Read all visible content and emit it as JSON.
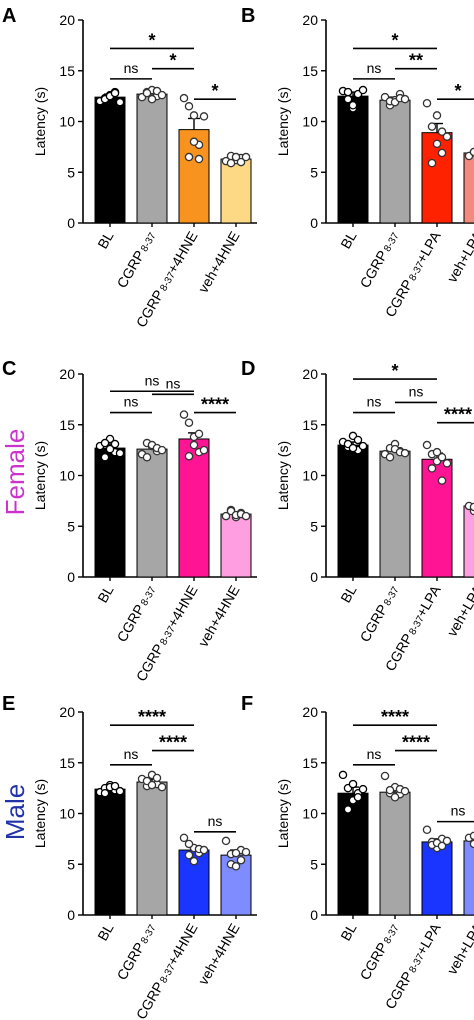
{
  "row_labels": [
    {
      "text": "",
      "color": "#000000"
    },
    {
      "text": "Female",
      "color": "#cc33cc"
    },
    {
      "text": "Male",
      "color": "#2233aa"
    }
  ],
  "chart_data": [
    {
      "panel": "A",
      "type": "bar",
      "ylabel": "Latency (s)",
      "ylim": [
        0,
        20
      ],
      "yticks": [
        0,
        5,
        10,
        15,
        20
      ],
      "categories": [
        {
          "main": "BL",
          "sub": "",
          "tail": ""
        },
        {
          "main": "CGRP",
          "sub": "8-37",
          "tail": ""
        },
        {
          "main": "CGRP",
          "sub": "8-37",
          "tail": "+4HNE"
        },
        {
          "main": "veh+4HNE",
          "sub": "",
          "tail": ""
        }
      ],
      "colors": [
        "#000000",
        "#a6a6a6",
        "#f7931e",
        "#fdd885"
      ],
      "values": [
        12.4,
        12.7,
        9.2,
        6.3
      ],
      "errors": [
        0.3,
        0.3,
        1.1,
        0.2
      ],
      "points": [
        [
          12.0,
          12.3,
          12.6,
          12.9,
          12.2,
          12.5,
          12.8,
          11.9
        ],
        [
          12.4,
          12.9,
          13.1,
          12.5,
          12.8,
          12.2,
          13.0,
          12.6
        ],
        [
          12.3,
          11.5,
          10.6,
          7.7,
          6.5,
          8.0,
          6.3,
          10.5
        ],
        [
          6.1,
          6.6,
          6.2,
          6.4,
          5.9,
          6.5,
          6.0,
          6.5
        ]
      ],
      "significance": [
        {
          "from": 0,
          "to": 2,
          "label": "*",
          "y": 17.2
        },
        {
          "from": 0,
          "to": 1,
          "label": "ns",
          "y": 14.2
        },
        {
          "from": 1,
          "to": 2,
          "label": "*",
          "y": 15.2
        },
        {
          "from": 2,
          "to": 3,
          "label": "*",
          "y": 12.2
        }
      ]
    },
    {
      "panel": "B",
      "type": "bar",
      "ylabel": "Latency (s)",
      "ylim": [
        0,
        20
      ],
      "yticks": [
        0,
        5,
        10,
        15,
        20
      ],
      "categories": [
        {
          "main": "BL",
          "sub": "",
          "tail": ""
        },
        {
          "main": "CGRP",
          "sub": "8-37",
          "tail": ""
        },
        {
          "main": "CGRP",
          "sub": "8-37",
          "tail": "+LPA"
        },
        {
          "main": "veh+LPA",
          "sub": "",
          "tail": ""
        }
      ],
      "colors": [
        "#000000",
        "#a6a6a6",
        "#ff2200",
        "#f48a7e"
      ],
      "values": [
        12.5,
        12.1,
        8.9,
        6.9
      ],
      "errors": [
        0.4,
        0.3,
        0.9,
        0.1
      ],
      "points": [
        [
          13.0,
          12.2,
          11.3,
          12.6,
          12.9,
          11.6,
          12.7,
          13.1
        ],
        [
          12.4,
          11.6,
          12.1,
          12.7,
          12.0,
          11.9,
          12.3,
          12.2
        ],
        [
          11.8,
          9.5,
          7.8,
          6.9,
          5.9,
          10.6,
          9.0,
          8.5
        ],
        [
          6.6,
          7.0,
          6.8,
          7.1,
          7.0,
          6.7,
          6.9,
          7.2
        ]
      ],
      "significance": [
        {
          "from": 0,
          "to": 2,
          "label": "*",
          "y": 17.2
        },
        {
          "from": 0,
          "to": 1,
          "label": "ns",
          "y": 14.2
        },
        {
          "from": 1,
          "to": 2,
          "label": "**",
          "y": 15.2
        },
        {
          "from": 2,
          "to": 3,
          "label": "*",
          "y": 12.2
        }
      ]
    },
    {
      "panel": "C",
      "type": "bar",
      "ylabel": "Latency (s)",
      "ylim": [
        0,
        20
      ],
      "yticks": [
        0,
        5,
        10,
        15,
        20
      ],
      "categories": [
        {
          "main": "BL",
          "sub": "",
          "tail": ""
        },
        {
          "main": "CGRP",
          "sub": "8-37",
          "tail": ""
        },
        {
          "main": "CGRP",
          "sub": "8-37",
          "tail": "+4HNE"
        },
        {
          "main": "veh+4HNE",
          "sub": "",
          "tail": ""
        }
      ],
      "colors": [
        "#000000",
        "#a6a6a6",
        "#ff1493",
        "#ff9ee0"
      ],
      "values": [
        12.7,
        12.6,
        13.6,
        6.2
      ],
      "errors": [
        0.4,
        0.3,
        0.6,
        0.2
      ],
      "points": [
        [
          12.9,
          11.8,
          13.6,
          12.3,
          13.2,
          12.6,
          13.1,
          12.2
        ],
        [
          12.1,
          13.2,
          12.9,
          12.4,
          11.8,
          13.0,
          12.7,
          12.5
        ],
        [
          16.0,
          15.2,
          13.8,
          12.3,
          11.9,
          13.0,
          14.1,
          12.5
        ],
        [
          6.0,
          6.6,
          5.9,
          6.3,
          6.5,
          6.1,
          6.2,
          6.0
        ]
      ],
      "significance": [
        {
          "from": 0,
          "to": 2,
          "label": "ns",
          "y": 18.3
        },
        {
          "from": 0,
          "to": 1,
          "label": "ns",
          "y": 16.2
        },
        {
          "from": 1,
          "to": 2,
          "label": "ns",
          "y": 18.0
        },
        {
          "from": 2,
          "to": 3,
          "label": "****",
          "y": 16.2
        }
      ]
    },
    {
      "panel": "D",
      "type": "bar",
      "ylabel": "Latency (s)",
      "ylim": [
        0,
        20
      ],
      "yticks": [
        0,
        5,
        10,
        15,
        20
      ],
      "categories": [
        {
          "main": "BL",
          "sub": "",
          "tail": ""
        },
        {
          "main": "CGRP",
          "sub": "8-37",
          "tail": ""
        },
        {
          "main": "CGRP",
          "sub": "8-37",
          "tail": "+LPA"
        },
        {
          "main": "veh+LPA",
          "sub": "",
          "tail": ""
        }
      ],
      "colors": [
        "#000000",
        "#a6a6a6",
        "#ff1493",
        "#ff9ee0"
      ],
      "values": [
        13.0,
        12.4,
        11.6,
        7.0
      ],
      "errors": [
        0.3,
        0.3,
        0.6,
        0.2
      ],
      "points": [
        [
          13.3,
          12.8,
          13.9,
          12.5,
          13.1,
          12.7,
          13.5,
          12.9
        ],
        [
          12.1,
          12.7,
          13.1,
          12.4,
          11.8,
          12.6,
          12.3,
          12.2
        ],
        [
          13.0,
          12.1,
          11.4,
          9.5,
          10.7,
          12.3,
          11.8,
          11.2
        ],
        [
          7.0,
          6.5,
          7.6,
          6.8,
          6.9,
          7.3,
          6.7,
          7.1
        ]
      ],
      "significance": [
        {
          "from": 0,
          "to": 2,
          "label": "*",
          "y": 19.5
        },
        {
          "from": 0,
          "to": 1,
          "label": "ns",
          "y": 16.2
        },
        {
          "from": 1,
          "to": 2,
          "label": "ns",
          "y": 17.2
        },
        {
          "from": 2,
          "to": 3,
          "label": "****",
          "y": 15.2
        }
      ]
    },
    {
      "panel": "E",
      "type": "bar",
      "ylabel": "Latency (s)",
      "ylim": [
        0,
        20
      ],
      "yticks": [
        0,
        5,
        10,
        15,
        20
      ],
      "categories": [
        {
          "main": "BL",
          "sub": "",
          "tail": ""
        },
        {
          "main": "CGRP",
          "sub": "8-37",
          "tail": ""
        },
        {
          "main": "CGRP",
          "sub": "8-37",
          "tail": "+4HNE"
        },
        {
          "main": "veh+4HNE",
          "sub": "",
          "tail": ""
        }
      ],
      "colors": [
        "#000000",
        "#a6a6a6",
        "#1a35ff",
        "#7f8cff"
      ],
      "values": [
        12.4,
        13.1,
        6.4,
        5.9
      ],
      "errors": [
        0.3,
        0.3,
        0.4,
        0.5
      ],
      "points": [
        [
          12.1,
          12.5,
          12.8,
          12.3,
          12.0,
          12.6,
          12.7,
          12.2
        ],
        [
          13.4,
          12.7,
          13.8,
          12.9,
          13.2,
          12.8,
          13.5,
          12.6
        ],
        [
          7.6,
          5.9,
          6.6,
          6.1,
          7.0,
          5.3,
          6.5,
          6.4
        ],
        [
          7.3,
          5.0,
          4.8,
          6.4,
          6.0,
          6.1,
          5.4,
          6.2
        ]
      ],
      "significance": [
        {
          "from": 0,
          "to": 2,
          "label": "****",
          "y": 18.7
        },
        {
          "from": 0,
          "to": 1,
          "label": "ns",
          "y": 14.8
        },
        {
          "from": 1,
          "to": 2,
          "label": "****",
          "y": 16.2
        },
        {
          "from": 2,
          "to": 3,
          "label": "ns",
          "y": 8.2
        }
      ]
    },
    {
      "panel": "F",
      "type": "bar",
      "ylabel": "Latency (s)",
      "ylim": [
        0,
        20
      ],
      "yticks": [
        0,
        5,
        10,
        15,
        20
      ],
      "categories": [
        {
          "main": "BL",
          "sub": "",
          "tail": ""
        },
        {
          "main": "CGRP",
          "sub": "8-37",
          "tail": ""
        },
        {
          "main": "CGRP",
          "sub": "8-37",
          "tail": "+LPA"
        },
        {
          "main": "veh+LPA",
          "sub": "",
          "tail": ""
        }
      ],
      "colors": [
        "#000000",
        "#a6a6a6",
        "#1a35ff",
        "#7f8cff"
      ],
      "values": [
        12.0,
        12.1,
        7.2,
        7.3
      ],
      "errors": [
        0.6,
        0.4,
        0.3,
        0.2
      ],
      "points": [
        [
          13.8,
          12.5,
          11.3,
          12.0,
          10.4,
          12.9,
          11.6,
          12.4
        ],
        [
          13.7,
          12.0,
          12.6,
          11.9,
          12.3,
          11.6,
          12.4,
          12.2
        ],
        [
          8.4,
          7.2,
          6.6,
          7.5,
          6.9,
          7.1,
          6.8,
          7.3
        ],
        [
          7.6,
          7.0,
          7.4,
          7.2,
          7.8,
          7.1,
          7.3,
          7.0
        ]
      ],
      "significance": [
        {
          "from": 0,
          "to": 2,
          "label": "****",
          "y": 18.7
        },
        {
          "from": 0,
          "to": 1,
          "label": "ns",
          "y": 14.8
        },
        {
          "from": 1,
          "to": 2,
          "label": "****",
          "y": 16.2
        },
        {
          "from": 2,
          "to": 3,
          "label": "ns",
          "y": 9.2
        }
      ]
    }
  ]
}
